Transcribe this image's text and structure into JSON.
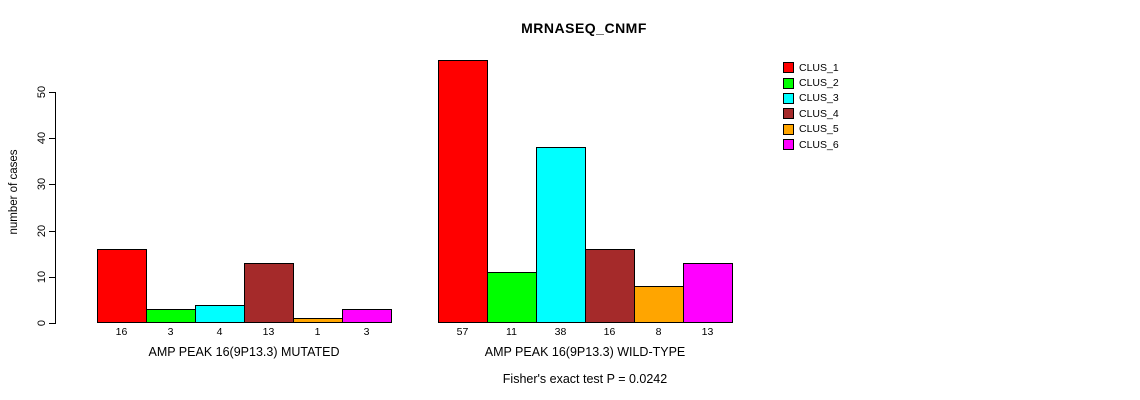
{
  "title": "MRNASEQ_CNMF",
  "chart_data": {
    "type": "bar",
    "title": "MRNASEQ_CNMF",
    "ylabel": "number of cases",
    "xlabel": "",
    "ylim": [
      0,
      50
    ],
    "yticks": [
      0,
      10,
      20,
      30,
      40,
      50
    ],
    "grid": false,
    "legend_position": "right",
    "legend_entries": [
      "CLUS_1",
      "CLUS_2",
      "CLUS_3",
      "CLUS_4",
      "CLUS_5",
      "CLUS_6"
    ],
    "colors": [
      "#FF0000",
      "#00FF00",
      "#00FFFF",
      "#A52A2A",
      "#FFA500",
      "#FF00FF"
    ],
    "categories": [
      "AMP PEAK 16(9P13.3) MUTATED",
      "AMP PEAK 16(9P13.3) WILD-TYPE"
    ],
    "series": [
      {
        "name": "CLUS_1",
        "values": [
          16,
          57
        ]
      },
      {
        "name": "CLUS_2",
        "values": [
          3,
          11
        ]
      },
      {
        "name": "CLUS_3",
        "values": [
          4,
          38
        ]
      },
      {
        "name": "CLUS_4",
        "values": [
          13,
          16
        ]
      },
      {
        "name": "CLUS_5",
        "values": [
          1,
          8
        ]
      },
      {
        "name": "CLUS_6",
        "values": [
          3,
          13
        ]
      }
    ],
    "groups": [
      {
        "label": "AMP PEAK 16(9P13.3) MUTATED",
        "values": [
          16,
          3,
          4,
          13,
          1,
          3
        ]
      },
      {
        "label": "AMP PEAK 16(9P13.3) WILD-TYPE",
        "values": [
          57,
          11,
          38,
          16,
          8,
          13
        ]
      }
    ],
    "annotation": "Fisher's exact test P = 0.0242"
  }
}
